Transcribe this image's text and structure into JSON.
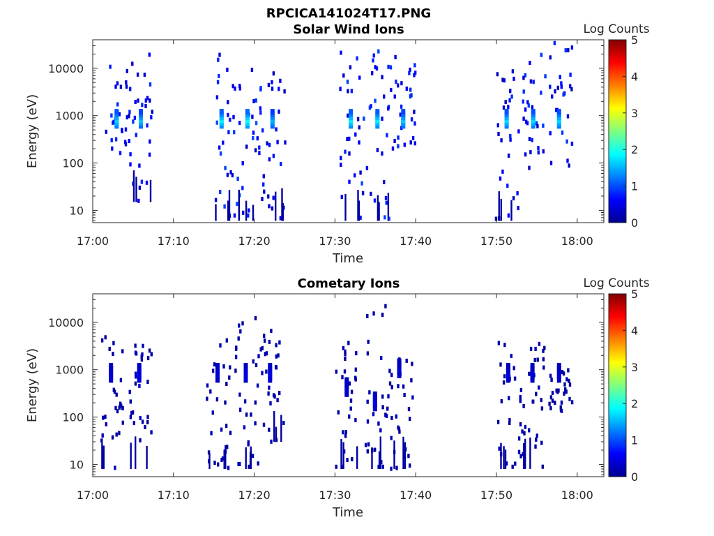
{
  "figure_title": "RPCICA141024T17.PNG",
  "chart_data": [
    {
      "type": "heatmap",
      "title": "Solar Wind Ions",
      "xlabel": "Time",
      "ylabel": "Energy (eV)",
      "x_tick_labels": [
        "17:00",
        "17:10",
        "17:20",
        "17:30",
        "17:40",
        "17:50",
        "18:00"
      ],
      "x_tick_values_min": [
        0,
        10,
        20,
        30,
        40,
        50,
        60
      ],
      "xlim_min": [
        0,
        63.3
      ],
      "y_scale": "log",
      "y_tick_labels": [
        "10",
        "100",
        "1000",
        "10000"
      ],
      "y_tick_values": [
        10,
        100,
        1000,
        10000
      ],
      "ylim": [
        5.5,
        40000
      ],
      "colorbar": {
        "label": "Log Counts",
        "ticks": [
          "0",
          "1",
          "2",
          "3",
          "4",
          "5"
        ],
        "range": [
          0,
          5
        ],
        "colormap": "jet"
      },
      "clusters": [
        {
          "t": 3.0,
          "peak_e": 800,
          "lo_e": 100,
          "hi_e": 20000,
          "level": 1.7
        },
        {
          "t": 6.0,
          "peak_e": 800,
          "lo_e": 15,
          "hi_e": 20000,
          "level": 1.6
        },
        {
          "t": 16.0,
          "peak_e": 800,
          "lo_e": 6,
          "hi_e": 22000,
          "level": 1.8
        },
        {
          "t": 19.2,
          "peak_e": 800,
          "lo_e": 6,
          "hi_e": 20000,
          "level": 1.9
        },
        {
          "t": 22.3,
          "peak_e": 800,
          "lo_e": 6,
          "hi_e": 15000,
          "level": 1.5
        },
        {
          "t": 32.0,
          "peak_e": 800,
          "lo_e": 6,
          "hi_e": 30000,
          "level": 1.8
        },
        {
          "t": 35.3,
          "peak_e": 800,
          "lo_e": 6,
          "hi_e": 25000,
          "level": 1.8
        },
        {
          "t": 38.5,
          "peak_e": 800,
          "lo_e": 200,
          "hi_e": 25000,
          "level": 1.6
        },
        {
          "t": 51.3,
          "peak_e": 800,
          "lo_e": 6,
          "hi_e": 20000,
          "level": 1.7
        },
        {
          "t": 54.6,
          "peak_e": 800,
          "lo_e": 50,
          "hi_e": 25000,
          "level": 1.7
        },
        {
          "t": 57.8,
          "peak_e": 800,
          "lo_e": 80,
          "hi_e": 35000,
          "level": 1.7
        }
      ]
    },
    {
      "type": "heatmap",
      "title": "Cometary Ions",
      "xlabel": "Time",
      "ylabel": "Energy (eV)",
      "x_tick_labels": [
        "17:00",
        "17:10",
        "17:20",
        "17:30",
        "17:40",
        "17:50",
        "18:00"
      ],
      "x_tick_values_min": [
        0,
        10,
        20,
        30,
        40,
        50,
        60
      ],
      "xlim_min": [
        0,
        63.3
      ],
      "y_scale": "log",
      "y_tick_labels": [
        "10",
        "100",
        "1000",
        "10000"
      ],
      "y_tick_values": [
        10,
        100,
        1000,
        10000
      ],
      "ylim": [
        5.5,
        40000
      ],
      "colorbar": {
        "label": "Log Counts",
        "ticks": [
          "0",
          "1",
          "2",
          "3",
          "4",
          "5"
        ],
        "range": [
          0,
          5
        ],
        "colormap": "jet"
      },
      "clusters": [
        {
          "t": 2.3,
          "peak_e": 800,
          "lo_e": 8,
          "hi_e": 7000,
          "level": 0.4
        },
        {
          "t": 5.8,
          "peak_e": 800,
          "lo_e": 8,
          "hi_e": 4000,
          "level": 0.5
        },
        {
          "t": 15.5,
          "peak_e": 800,
          "lo_e": 8,
          "hi_e": 6000,
          "level": 0.4
        },
        {
          "t": 19.0,
          "peak_e": 800,
          "lo_e": 8,
          "hi_e": 14000,
          "level": 0.5
        },
        {
          "t": 22.0,
          "peak_e": 800,
          "lo_e": 30,
          "hi_e": 7000,
          "level": 0.5
        },
        {
          "t": 31.5,
          "peak_e": 400,
          "lo_e": 8,
          "hi_e": 4000,
          "level": 0.4
        },
        {
          "t": 35.0,
          "peak_e": 200,
          "lo_e": 8,
          "hi_e": 35000,
          "level": 0.5
        },
        {
          "t": 38.0,
          "peak_e": 1000,
          "lo_e": 8,
          "hi_e": 2000,
          "level": 0.4
        },
        {
          "t": 51.5,
          "peak_e": 800,
          "lo_e": 8,
          "hi_e": 4000,
          "level": 0.4
        },
        {
          "t": 54.5,
          "peak_e": 800,
          "lo_e": 8,
          "hi_e": 4000,
          "level": 0.4
        },
        {
          "t": 57.8,
          "peak_e": 800,
          "lo_e": 130,
          "hi_e": 1000,
          "level": 0.4
        }
      ]
    }
  ]
}
